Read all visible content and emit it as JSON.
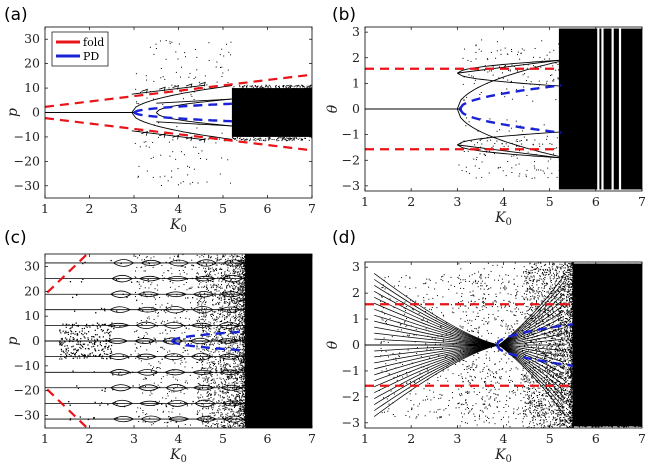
{
  "figure": {
    "legend": [
      {
        "label": "fold",
        "color": "#e8141a",
        "style": "solid"
      },
      {
        "label": "PD",
        "color": "#1a22d6",
        "style": "solid"
      }
    ]
  },
  "chart_data": [
    {
      "panel": "(a)",
      "type": "scatter",
      "xlabel": "K",
      "xlabel_subscript": "0",
      "ylabel": "p",
      "xlim": [
        1,
        7
      ],
      "ylim": [
        -35,
        35
      ],
      "xticks": [
        1,
        2,
        3,
        4,
        5,
        6,
        7
      ],
      "yticks": [
        -30,
        -20,
        -10,
        0,
        10,
        20,
        30
      ],
      "ytick_labels": [
        "−30",
        "−20",
        "−10",
        "0",
        "10",
        "20",
        "30"
      ],
      "fold_lines": [
        {
          "x": [
            1,
            7
          ],
          "y": [
            2.3,
            15.5
          ]
        },
        {
          "x": [
            1,
            7
          ],
          "y": [
            -2.3,
            -15.5
          ]
        }
      ],
      "pd_branch": {
        "x_start": 3.0,
        "x_end": 5.2,
        "center": 0,
        "amplitude_at_end": 3.6
      },
      "orbit_branches": [
        {
          "x": [
            1,
            3.05
          ],
          "y": [
            0,
            0
          ]
        },
        {
          "x": [
            2.95,
            4.6
          ],
          "y": [
            7.5,
            11.2
          ]
        },
        {
          "x": [
            2.95,
            4.6
          ],
          "y": [
            -7.5,
            -11.2
          ]
        },
        {
          "x": [
            3.5,
            5.2
          ],
          "y": [
            3.8,
            5.5
          ]
        },
        {
          "x": [
            3.5,
            5.2
          ],
          "y": [
            -3.8,
            -5.5
          ]
        }
      ],
      "chaos_band": {
        "x": [
          5.2,
          7
        ],
        "y": [
          -10,
          10
        ]
      }
    },
    {
      "panel": "(b)",
      "type": "scatter",
      "xlabel": "K",
      "xlabel_subscript": "0",
      "ylabel": "θ",
      "xlim": [
        1,
        7
      ],
      "ylim": [
        -3.2,
        3.2
      ],
      "xticks": [
        1,
        2,
        3,
        4,
        5,
        6,
        7
      ],
      "yticks": [
        -3,
        -2,
        -1,
        0,
        1,
        2,
        3
      ],
      "ytick_labels": [
        "−3",
        "−2",
        "−1",
        "0",
        "1",
        "2",
        "3"
      ],
      "fold_lines": [
        {
          "x": [
            1,
            5.2
          ],
          "y": [
            1.5708,
            1.5708
          ]
        },
        {
          "x": [
            1,
            5.2
          ],
          "y": [
            -1.5708,
            -1.5708
          ]
        }
      ],
      "pd_branch": {
        "x_start": 3.05,
        "x_end": 5.25,
        "center": 0,
        "amplitude_at_end": 0.92
      },
      "orbit_branches": [
        {
          "x": [
            1,
            3.1
          ],
          "y": [
            0,
            0
          ]
        },
        {
          "x": [
            3.0,
            5.2
          ],
          "y": [
            1.4,
            1.9
          ]
        },
        {
          "x": [
            3.0,
            5.2
          ],
          "y": [
            -1.4,
            -1.9
          ]
        }
      ],
      "chaos_band": {
        "x": [
          5.2,
          7
        ],
        "y": [
          -3.14,
          3.14
        ]
      }
    },
    {
      "panel": "(c)",
      "type": "scatter",
      "xlabel": "K",
      "xlabel_subscript": "0",
      "ylabel": "p",
      "xlim": [
        1,
        7
      ],
      "ylim": [
        -35,
        35
      ],
      "xticks": [
        1,
        2,
        3,
        4,
        5,
        6,
        7
      ],
      "yticks": [
        -30,
        -20,
        -10,
        0,
        10,
        20,
        30
      ],
      "ytick_labels": [
        "−30",
        "−20",
        "−10",
        "0",
        "10",
        "20",
        "30"
      ],
      "fold_lines": [
        {
          "x": [
            1.05,
            1.95
          ],
          "y": [
            19.5,
            35
          ]
        },
        {
          "x": [
            1.05,
            1.95
          ],
          "y": [
            -19.5,
            -35
          ]
        }
      ],
      "pd_branch": {
        "x_start": 3.85,
        "x_end": 5.5,
        "center": 0,
        "amplitude_at_end": 3.8
      },
      "resonance_levels": [
        -31.4,
        -25.1,
        -18.8,
        -12.6,
        -6.3,
        0,
        6.3,
        12.6,
        18.8,
        25.1,
        31.4
      ],
      "orbit_branches": [
        {
          "x": [
            1,
            5.5
          ],
          "y": [
            0,
            0
          ]
        }
      ],
      "chaos_band": {
        "x": [
          5.5,
          7
        ],
        "y": [
          -35,
          35
        ]
      }
    },
    {
      "panel": "(d)",
      "type": "scatter",
      "xlabel": "K",
      "xlabel_subscript": "0",
      "ylabel": "θ",
      "xlim": [
        1,
        7
      ],
      "ylim": [
        -3.2,
        3.2
      ],
      "xticks": [
        1,
        2,
        3,
        4,
        5,
        6,
        7
      ],
      "yticks": [
        -3,
        -2,
        -1,
        0,
        1,
        2,
        3
      ],
      "ytick_labels": [
        "−3",
        "−2",
        "−1",
        "0",
        "1",
        "2",
        "3"
      ],
      "fold_lines": [
        {
          "x": [
            1,
            5.5
          ],
          "y": [
            1.5708,
            1.5708
          ]
        },
        {
          "x": [
            1,
            5.5
          ],
          "y": [
            -1.5708,
            -1.5708
          ]
        }
      ],
      "pd_branch": {
        "x_start": 3.85,
        "x_end": 5.5,
        "center": 0,
        "amplitude_at_end": 0.8
      },
      "orbit_branches": [
        {
          "x": [
            1,
            3.9
          ],
          "y": [
            0,
            0
          ]
        }
      ],
      "chaos_band": {
        "x": [
          5.5,
          7
        ],
        "y": [
          -3.14,
          3.14
        ]
      }
    }
  ]
}
